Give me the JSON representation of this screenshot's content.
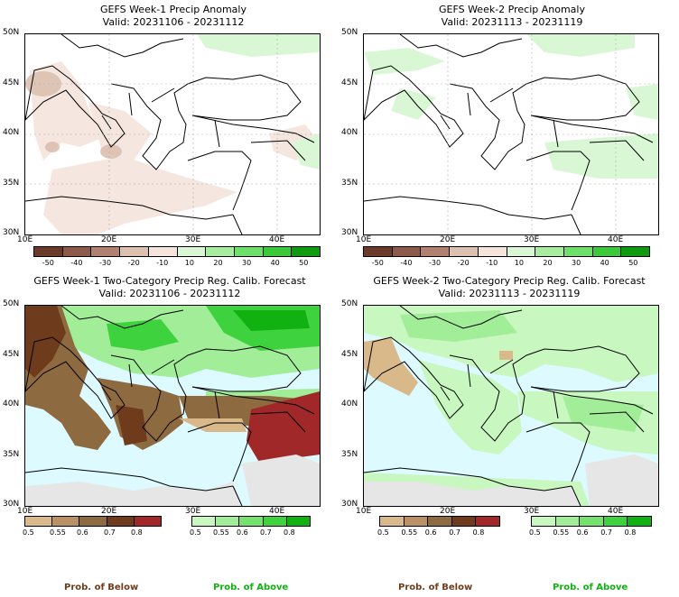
{
  "panels": [
    {
      "title": "GEFS Week-1 Precip Anomaly",
      "valid": "Valid: 20231106 - 20231112"
    },
    {
      "title": "GEFS Week-2 Precip Anomaly",
      "valid": "Valid: 20231113 - 20231119"
    },
    {
      "title": "GEFS Week-1 Two-Category Precip Reg. Calib. Forecast",
      "valid": "Valid: 20231106 - 20231112"
    },
    {
      "title": "GEFS Week-2 Two-Category Precip Reg. Calib. Forecast",
      "valid": "Valid: 20231113 - 20231119"
    }
  ],
  "lat_labels": [
    "50N",
    "45N",
    "40N",
    "35N",
    "30N"
  ],
  "lon_labels": [
    "10E",
    "20E",
    "30E",
    "40E"
  ],
  "anomaly_ticks": [
    "-50",
    "-40",
    "-30",
    "-20",
    "-10",
    "10",
    "20",
    "30",
    "40",
    "50"
  ],
  "prob_ticks_below": [
    "0.5",
    "0.55",
    "0.6",
    "0.7",
    "0.8"
  ],
  "prob_ticks_above": [
    "0.5",
    "0.55",
    "0.6",
    "0.7",
    "0.8"
  ],
  "legend": {
    "below": "Prob. of Below",
    "above": "Prob. of Above"
  },
  "colors": {
    "anomaly_scale": [
      "#6b3a2a",
      "#8c5a4a",
      "#b08070",
      "#dcc0b0",
      "#f4e4dc",
      "#d9f7d4",
      "#a8eca0",
      "#6ddf6a",
      "#3bc83a",
      "#109a10"
    ],
    "below_scale": [
      "#d9b889",
      "#b99164",
      "#8e6a40",
      "#6e3c1c",
      "#a02828"
    ],
    "above_scale": [
      "#c8f7c0",
      "#a2ee98",
      "#76e26e",
      "#3fd23f",
      "#12b112"
    ],
    "sea": "#dcfaff",
    "land_default": "#ffffff",
    "no_data": "#e6e6e6"
  }
}
